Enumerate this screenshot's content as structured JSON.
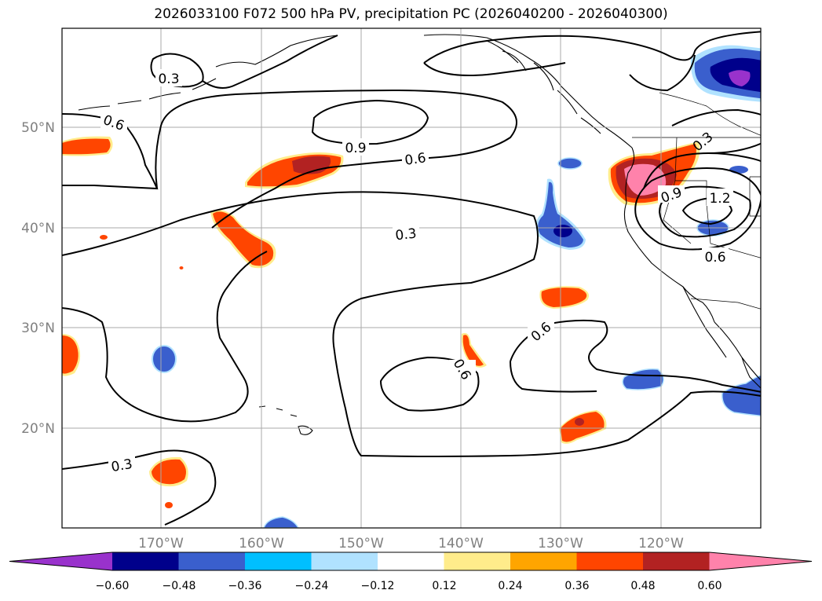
{
  "title": "2026033100 F072 500 hPa PV, precipitation PC (2026040200 - 2026040300)",
  "lat_labels": [
    "50°N",
    "40°N",
    "30°N",
    "20°N"
  ],
  "lon_labels": [
    "170°W",
    "160°W",
    "150°W",
    "140°W",
    "130°W",
    "120°W"
  ],
  "colorbar": {
    "colors": [
      "#9932cc",
      "#00008b",
      "#3a5fcd",
      "#00bfff",
      "#b0e2ff",
      "#ffffff",
      "#ffec8b",
      "#ffa500",
      "#ff4500",
      "#b22222",
      "#ff82ab"
    ],
    "ticks": [
      "−0.60",
      "−0.48",
      "−0.36",
      "−0.24",
      "−0.12",
      "0.12",
      "0.24",
      "0.36",
      "0.48",
      "0.60"
    ]
  },
  "contour_labels": [
    {
      "id": "c1",
      "text": "0.3"
    },
    {
      "id": "c2",
      "text": "0.6"
    },
    {
      "id": "c3",
      "text": "0.9"
    },
    {
      "id": "c4",
      "text": "0.6"
    },
    {
      "id": "c5",
      "text": "0.3"
    },
    {
      "id": "c6",
      "text": "0.6"
    },
    {
      "id": "c7",
      "text": "0.6"
    },
    {
      "id": "c8",
      "text": "0.3"
    },
    {
      "id": "c9",
      "text": "0.9"
    },
    {
      "id": "c10",
      "text": "1.2"
    },
    {
      "id": "c11",
      "text": "0.6"
    },
    {
      "id": "c12",
      "text": "0.3"
    }
  ]
}
